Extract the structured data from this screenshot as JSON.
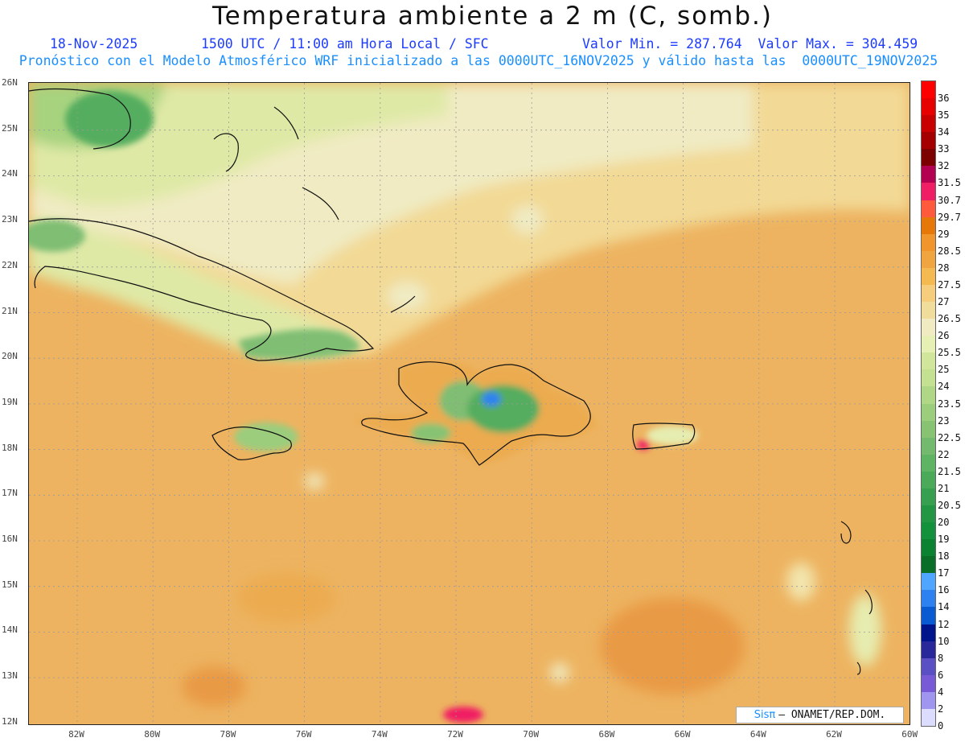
{
  "header": {
    "title": "Temperatura ambiente a 2 m (C, somb.)",
    "date": "18-Nov-2025",
    "time": "1500 UTC / 11:00 am Hora Local / SFC",
    "minmax": "Valor Min. = 287.764  Valor Max. = 304.459",
    "model_line": "Pronóstico con el Modelo Atmosférico WRF inicializado a las 0000UTC_16NOV2025 y válido hasta las  0000UTC_19NOV2025"
  },
  "map": {
    "lat_labels": [
      "26N",
      "25N",
      "24N",
      "23N",
      "22N",
      "21N",
      "20N",
      "19N",
      "18N",
      "17N",
      "16N",
      "15N",
      "14N",
      "13N",
      "12N"
    ],
    "lon_labels": [
      "82W",
      "80W",
      "78W",
      "76W",
      "74W",
      "72W",
      "70W",
      "68W",
      "66W",
      "64W",
      "62W",
      "60W"
    ],
    "land_color": "#2f2f2f",
    "sea_base": "#edb360"
  },
  "colorbar": {
    "ticks": [
      "36",
      "35",
      "34",
      "33",
      "32",
      "31.5",
      "30.7",
      "29.7",
      "29",
      "28.5",
      "28",
      "27.5",
      "27",
      "26.5",
      "26",
      "25.5",
      "25",
      "24",
      "23.5",
      "23",
      "22.5",
      "22",
      "21.5",
      "21",
      "20.5",
      "20",
      "19",
      "18",
      "17",
      "16",
      "14",
      "12",
      "10",
      "8",
      "6",
      "4",
      "2",
      "0"
    ],
    "colors": [
      "#ff0000",
      "#e60000",
      "#c80000",
      "#a50000",
      "#7d0000",
      "#b40050",
      "#f01e64",
      "#ff5a3c",
      "#e6780a",
      "#f0962d",
      "#f0a541",
      "#f5b952",
      "#f5cd7d",
      "#f0dc9b",
      "#f0ebc3",
      "#e6f0b4",
      "#d2e69b",
      "#c3e191",
      "#afd786",
      "#9bcd7d",
      "#87c373",
      "#73b96e",
      "#5fb464",
      "#4baa5a",
      "#37a050",
      "#239646",
      "#14913c",
      "#0a8232",
      "#0a6e28",
      "#50a5ff",
      "#2d82f0",
      "#0a5ad2",
      "#00148c",
      "#28289b",
      "#5a50c3",
      "#785ad7",
      "#a096f0",
      "#dcdcff"
    ]
  },
  "credit": {
    "brand": "Sisπ",
    "org": "– ONAMET/REP.DOM."
  }
}
